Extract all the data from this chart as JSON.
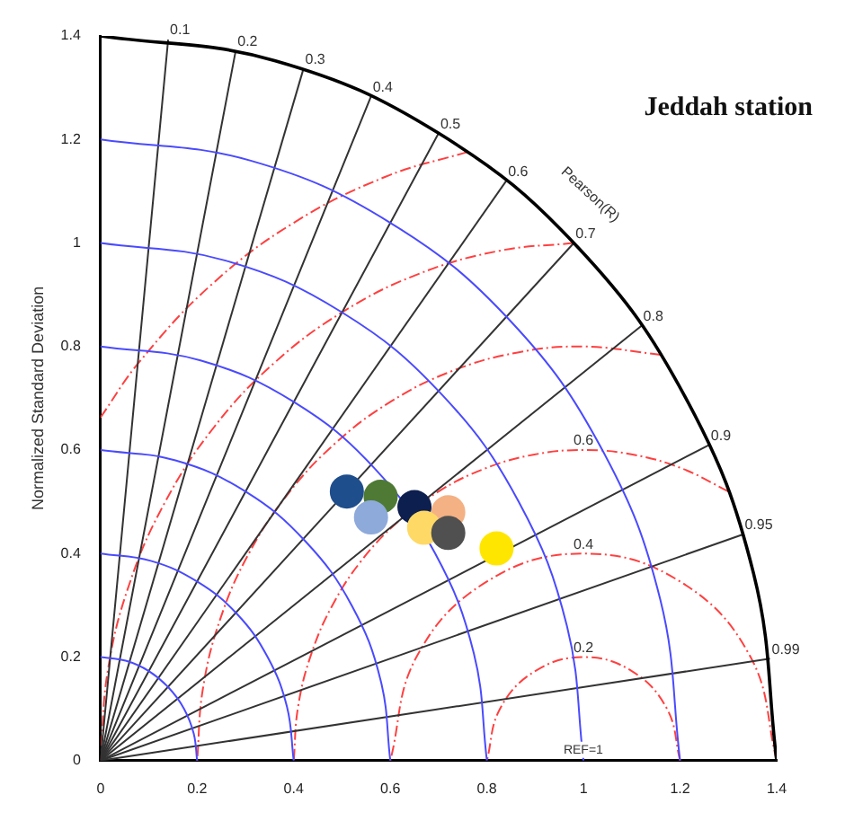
{
  "chart_data": {
    "type": "scatter",
    "title": "Jeddah station",
    "ylabel": "Normalized Standard Deviation",
    "xlim": [
      0,
      1.4
    ],
    "xticks": [
      0,
      0.2,
      0.4,
      0.6,
      0.8,
      1,
      1.2,
      1.4
    ],
    "ylim": [
      0,
      1.4
    ],
    "yticks": [
      0,
      0.2,
      0.4,
      0.6,
      0.8,
      1,
      1.2,
      1.4
    ],
    "series": [
      {
        "marker": "circle",
        "x": [
          0.51,
          0.58,
          0.56,
          0.65,
          0.72,
          0.67,
          0.72,
          0.82
        ],
        "values": [
          0.52,
          0.51,
          0.47,
          0.49,
          0.48,
          0.45,
          0.44,
          0.41
        ],
        "colors": [
          "#1f4e8c",
          "#4e7a35",
          "#8eaadb",
          "#0d1f4f",
          "#f4b183",
          "#ffd966",
          "#505050",
          "#ffe600"
        ]
      },
      {
        "type": "line",
        "marker": "none",
        "color": "#4a4aff",
        "x": [
          0.2,
          0.193,
          0.173,
          0.141,
          0.1,
          0.052,
          0
        ],
        "values": [
          0,
          0.052,
          0.1,
          0.141,
          0.173,
          0.193,
          0.2
        ]
      },
      {
        "type": "line",
        "marker": "none",
        "color": "#4a4aff",
        "x": [
          0.4,
          0.386,
          0.346,
          0.283,
          0.2,
          0.104,
          0
        ],
        "values": [
          0,
          0.104,
          0.2,
          0.283,
          0.346,
          0.386,
          0.4
        ]
      },
      {
        "type": "line",
        "marker": "none",
        "color": "#4a4aff",
        "x": [
          0.6,
          0.58,
          0.52,
          0.424,
          0.3,
          0.155,
          0
        ],
        "values": [
          0,
          0.155,
          0.3,
          0.424,
          0.52,
          0.58,
          0.6
        ]
      },
      {
        "type": "line",
        "marker": "none",
        "color": "#4a4aff",
        "x": [
          0.8,
          0.773,
          0.693,
          0.566,
          0.4,
          0.207,
          0
        ],
        "values": [
          0,
          0.207,
          0.4,
          0.566,
          0.693,
          0.773,
          0.8
        ]
      },
      {
        "type": "line",
        "marker": "none",
        "color": "#4a4aff",
        "x": [
          1,
          0.966,
          0.866,
          0.707,
          0.5,
          0.259,
          0
        ],
        "values": [
          0,
          0.259,
          0.5,
          0.707,
          0.866,
          0.966,
          1
        ]
      },
      {
        "type": "line",
        "marker": "none",
        "color": "#4a4aff",
        "x": [
          1.2,
          1.159,
          1.039,
          0.849,
          0.6,
          0.311,
          0
        ],
        "values": [
          0,
          0.311,
          0.6,
          0.849,
          1.039,
          1.159,
          1.2
        ]
      },
      {
        "type": "line",
        "marker": "none",
        "color": "#000000",
        "x": [
          1.4,
          1.352,
          1.212,
          0.99,
          0.7,
          0.362,
          0
        ],
        "values": [
          0,
          0.362,
          0.7,
          0.99,
          1.212,
          1.352,
          1.4
        ]
      },
      {
        "type": "line",
        "marker": "none",
        "color": "#333333",
        "x": [
          0,
          0.14
        ],
        "values": [
          0,
          1.393
        ]
      },
      {
        "type": "line",
        "marker": "none",
        "color": "#333333",
        "x": [
          0,
          0.28
        ],
        "values": [
          0,
          1.372
        ]
      },
      {
        "type": "line",
        "marker": "none",
        "color": "#333333",
        "x": [
          0,
          0.42
        ],
        "values": [
          0,
          1.336
        ]
      },
      {
        "type": "line",
        "marker": "none",
        "color": "#333333",
        "x": [
          0,
          0.56
        ],
        "values": [
          0,
          1.283
        ]
      },
      {
        "type": "line",
        "marker": "none",
        "color": "#333333",
        "x": [
          0,
          0.7
        ],
        "values": [
          0,
          1.212
        ]
      },
      {
        "type": "line",
        "marker": "none",
        "color": "#333333",
        "x": [
          0,
          0.84
        ],
        "values": [
          0,
          1.12
        ]
      },
      {
        "type": "line",
        "marker": "none",
        "color": "#333333",
        "x": [
          0,
          0.98
        ],
        "values": [
          0,
          1.0
        ]
      },
      {
        "type": "line",
        "marker": "none",
        "color": "#333333",
        "x": [
          0,
          1.12
        ],
        "values": [
          0,
          0.84
        ]
      },
      {
        "type": "line",
        "marker": "none",
        "color": "#333333",
        "x": [
          0,
          1.26
        ],
        "values": [
          0,
          0.61
        ]
      },
      {
        "type": "line",
        "marker": "none",
        "color": "#333333",
        "x": [
          0,
          1.33
        ],
        "values": [
          0,
          0.437
        ]
      },
      {
        "type": "line",
        "marker": "none",
        "color": "#333333",
        "x": [
          0,
          1.386
        ],
        "values": [
          0,
          0.197
        ]
      },
      {
        "type": "line",
        "marker": "none",
        "color": "#ff4040",
        "line_style": "dashed",
        "x": [
          1.2,
          1.173,
          1.1,
          1,
          0.9,
          0.827,
          0.8
        ],
        "values": [
          0,
          0.1,
          0.173,
          0.2,
          0.173,
          0.1,
          0
        ]
      },
      {
        "type": "line",
        "marker": "none",
        "color": "#ff4040",
        "line_style": "dashed",
        "x": [
          1.4,
          1.346,
          1.2,
          1,
          0.8,
          0.654,
          0.6
        ],
        "values": [
          0,
          0.2,
          0.346,
          0.4,
          0.346,
          0.2,
          0
        ]
      },
      {
        "type": "line",
        "marker": "none",
        "color": "#ff4040",
        "line_style": "dashed",
        "x": [
          1.3,
          1.205,
          1.104,
          1,
          0.896,
          0.795,
          0.7,
          0.614,
          0.54,
          0.48,
          0.436,
          0.409,
          0.4
        ],
        "values": [
          0.52,
          0.564,
          0.591,
          0.6,
          0.591,
          0.564,
          0.52,
          0.46,
          0.386,
          0.3,
          0.205,
          0.104,
          0
        ]
      },
      {
        "type": "line",
        "marker": "none",
        "color": "#ff4040",
        "line_style": "dashed",
        "x": [
          1.16,
          1,
          0.861,
          0.726,
          0.6,
          0.486,
          0.387,
          0.307,
          0.248,
          0.212,
          0.2
        ],
        "values": [
          0.784,
          0.8,
          0.788,
          0.752,
          0.693,
          0.613,
          0.514,
          0.4,
          0.274,
          0.139,
          0
        ]
      },
      {
        "type": "line",
        "marker": "none",
        "color": "#ff4040",
        "line_style": "dashed",
        "x": [
          0.98,
          0.826,
          0.658,
          0.5,
          0.357,
          0.234,
          0.134,
          0.06,
          0.015,
          0
        ],
        "values": [
          1.0,
          0.985,
          0.94,
          0.866,
          0.766,
          0.643,
          0.5,
          0.342,
          0.174,
          0
        ]
      },
      {
        "type": "line",
        "marker": "none",
        "color": "#ff4040",
        "line_style": "dashed",
        "x": [
          0.76,
          0.59,
          0.4,
          0.229,
          0.081,
          0
        ],
        "values": [
          1.176,
          1.128,
          1.039,
          0.919,
          0.771,
          0.663
        ]
      }
    ],
    "annotations": [
      {
        "text": "0.1",
        "x": 0.14,
        "y": 1.393
      },
      {
        "text": "0.2",
        "x": 0.28,
        "y": 1.372
      },
      {
        "text": "0.3",
        "x": 0.42,
        "y": 1.336
      },
      {
        "text": "0.4",
        "x": 0.56,
        "y": 1.283
      },
      {
        "text": "0.5",
        "x": 0.7,
        "y": 1.212
      },
      {
        "text": "0.6",
        "x": 0.84,
        "y": 1.12
      },
      {
        "text": "0.7",
        "x": 0.98,
        "y": 1.0
      },
      {
        "text": "0.8",
        "x": 1.12,
        "y": 0.84
      },
      {
        "text": "0.9",
        "x": 1.26,
        "y": 0.61
      },
      {
        "text": "0.95",
        "x": 1.33,
        "y": 0.437
      },
      {
        "text": "0.99",
        "x": 1.386,
        "y": 0.197
      },
      {
        "text": "0.2",
        "x": 1.0,
        "y": 0.2
      },
      {
        "text": "0.4",
        "x": 1.0,
        "y": 0.4
      },
      {
        "text": "0.6",
        "x": 1.0,
        "y": 0.6
      },
      "Pearson(R)",
      "REF=1"
    ]
  }
}
